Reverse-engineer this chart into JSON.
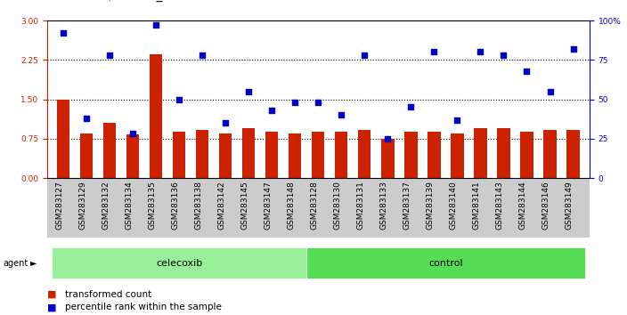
{
  "categories": [
    "GSM283127",
    "GSM283129",
    "GSM283132",
    "GSM283134",
    "GSM283135",
    "GSM283136",
    "GSM283138",
    "GSM283142",
    "GSM283145",
    "GSM283147",
    "GSM283148",
    "GSM283128",
    "GSM283130",
    "GSM283131",
    "GSM283133",
    "GSM283137",
    "GSM283139",
    "GSM283140",
    "GSM283141",
    "GSM283143",
    "GSM283144",
    "GSM283146",
    "GSM283149"
  ],
  "bar_values": [
    1.5,
    0.85,
    1.05,
    0.83,
    2.35,
    0.88,
    0.92,
    0.85,
    0.95,
    0.88,
    0.85,
    0.88,
    0.88,
    0.92,
    0.75,
    0.88,
    0.88,
    0.85,
    0.95,
    0.95,
    0.88,
    0.92,
    0.92
  ],
  "dot_values": [
    92,
    38,
    78,
    28,
    97,
    50,
    78,
    35,
    55,
    43,
    48,
    48,
    40,
    78,
    25,
    45,
    80,
    37,
    80,
    78,
    68,
    55,
    82
  ],
  "celecoxib_count": 11,
  "control_count": 12,
  "bar_color": "#cc2200",
  "dot_color": "#0000cc",
  "celecoxib_color": "#99ee99",
  "control_color": "#55dd55",
  "yticks_left": [
    0,
    0.75,
    1.5,
    2.25,
    3
  ],
  "yticks_right": [
    0,
    25,
    50,
    75,
    100
  ],
  "ylim_left": [
    0,
    3
  ],
  "ylim_right": [
    0,
    100
  ],
  "legend_bar": "transformed count",
  "legend_dot": "percentile rank within the sample",
  "axis_color": "#cc2200",
  "right_axis_color": "#0000cc",
  "bg_color": "#ffffff",
  "title_fontsize": 10,
  "tick_fontsize": 6.5,
  "label_fontsize": 8
}
